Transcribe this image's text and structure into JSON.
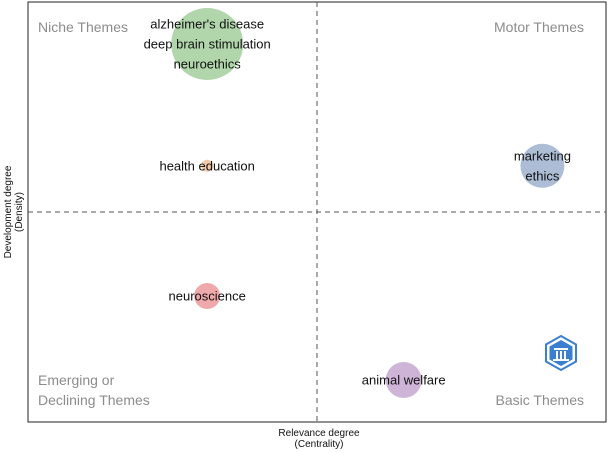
{
  "chart_data": {
    "type": "scatter",
    "subtype": "bubble / thematic map",
    "xlabel": [
      "Relevance degree",
      "(Centrality)"
    ],
    "ylabel": [
      "Development degree",
      "(Density)"
    ],
    "xlim": [
      0,
      100
    ],
    "ylim": [
      0,
      100
    ],
    "reference_lines": {
      "x": 50,
      "y": 50,
      "style": "dashed"
    },
    "quadrants": [
      {
        "name": "top-left",
        "lines": [
          "Niche Themes"
        ]
      },
      {
        "name": "top-right",
        "lines": [
          "Motor Themes"
        ]
      },
      {
        "name": "bottom-left",
        "lines": [
          "Emerging or",
          "Declining Themes"
        ]
      },
      {
        "name": "bottom-right",
        "lines": [
          "Basic Themes"
        ]
      }
    ],
    "series": [
      {
        "id": "cluster-alzheimers",
        "labels": [
          "alzheimer's disease",
          "deep brain stimulation",
          "neuroethics"
        ],
        "x": 31,
        "y": 90,
        "size": 36,
        "color": "#a3cf9c"
      },
      {
        "id": "cluster-health-education",
        "labels": [
          "health education"
        ],
        "x": 31,
        "y": 61,
        "size": 6,
        "color": "#f2c09a"
      },
      {
        "id": "cluster-marketing",
        "labels": [
          "marketing",
          "ethics"
        ],
        "x": 89,
        "y": 61,
        "size": 22,
        "color": "#9fb2cf"
      },
      {
        "id": "cluster-neuroscience",
        "labels": [
          "neuroscience"
        ],
        "x": 31,
        "y": 30,
        "size": 13,
        "color": "#ed9a9c"
      },
      {
        "id": "cluster-animal-welfare",
        "labels": [
          "animal welfare"
        ],
        "x": 65,
        "y": 10,
        "size": 18,
        "color": "#c5a8d1"
      }
    ]
  },
  "logo": {
    "name": "bibliometrix-logo",
    "color": "#3a7fd0"
  }
}
